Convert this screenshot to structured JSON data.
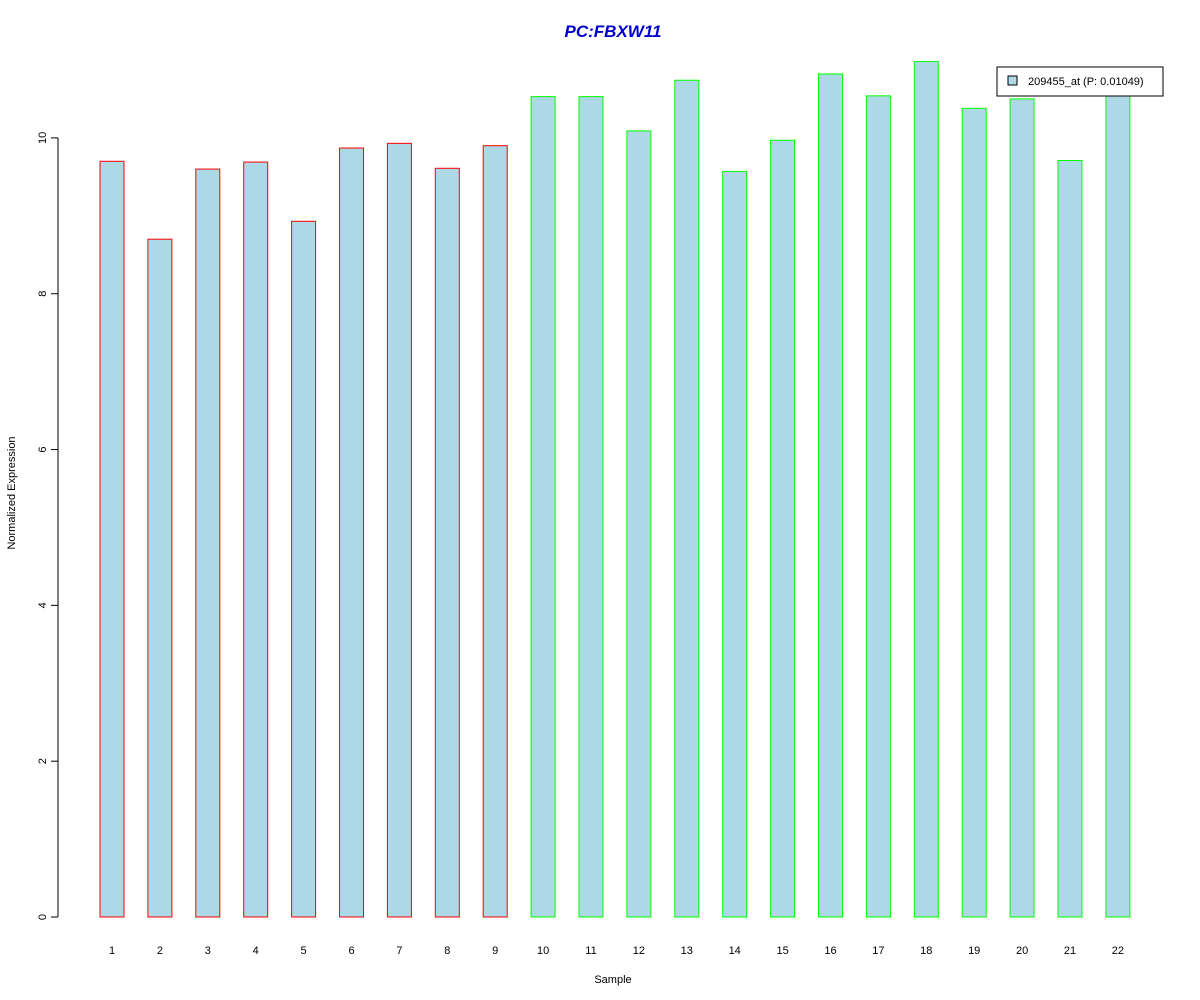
{
  "chart_data": {
    "type": "bar",
    "title": "PC:FBXW11",
    "xlabel": "Sample",
    "ylabel": "Normalized Expression",
    "categories": [
      "1",
      "2",
      "3",
      "4",
      "5",
      "6",
      "7",
      "8",
      "9",
      "10",
      "11",
      "12",
      "13",
      "14",
      "15",
      "16",
      "17",
      "18",
      "19",
      "20",
      "21",
      "22"
    ],
    "series": [
      {
        "name": "209455_at (P: 0.01049)",
        "values": [
          9.7,
          8.7,
          9.6,
          9.69,
          8.93,
          9.87,
          9.93,
          9.61,
          9.9,
          10.53,
          10.53,
          10.09,
          10.74,
          9.57,
          9.97,
          10.82,
          10.54,
          10.98,
          10.38,
          10.5,
          9.71,
          10.55
        ]
      }
    ],
    "group_border_colors": [
      "#ff0000",
      "#ff0000",
      "#ff0000",
      "#ff0000",
      "#ff0000",
      "#ff0000",
      "#ff0000",
      "#ff0000",
      "#ff0000",
      "#00ff00",
      "#00ff00",
      "#00ff00",
      "#00ff00",
      "#00ff00",
      "#00ff00",
      "#00ff00",
      "#00ff00",
      "#00ff00",
      "#00ff00",
      "#00ff00",
      "#00ff00",
      "#00ff00"
    ],
    "yticks": [
      0,
      2,
      4,
      6,
      8,
      10
    ],
    "ylim": [
      0,
      11
    ],
    "grid": false,
    "legend_position": "top-right",
    "colors": {
      "bar_fill": "#add8e6",
      "title": "#0000cc"
    }
  }
}
